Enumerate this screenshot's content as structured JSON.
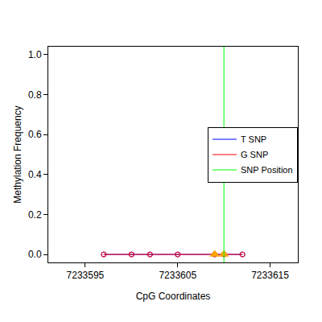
{
  "chart_data": {
    "type": "line",
    "x_label": "CpG Coordinates",
    "y_label": "Methylation Frequency",
    "x": [
      7233597,
      7233600,
      7233602,
      7233605,
      7233609,
      7233610,
      7233612
    ],
    "series": [
      {
        "name": "T SNP",
        "color": "#0000ff",
        "values": [
          0,
          0,
          0,
          0,
          0,
          0,
          0
        ]
      },
      {
        "name": "G SNP",
        "color": "#ff0000",
        "values": [
          0,
          0,
          0,
          0,
          0,
          0,
          0
        ]
      }
    ],
    "marker": "circle-open",
    "snp_position": {
      "name": "SNP Position",
      "x": 7233610,
      "color": "#00ff00"
    },
    "snp_cpgs": {
      "x": [
        7233609,
        7233610
      ],
      "values": [
        0,
        0
      ],
      "color": "#ffa500",
      "marker": "triangle-up"
    },
    "xlim": [
      7233591,
      7233618
    ],
    "ylim": [
      -0.04,
      1.04
    ],
    "xticks": [
      7233595,
      7233605,
      7233615
    ],
    "yticks": [
      {
        "value": 0,
        "label": "0.0"
      },
      0.2,
      0.4,
      0.6,
      0.8,
      {
        "value": 1,
        "label": "1.0"
      }
    ],
    "legend": "right",
    "grid": false
  }
}
